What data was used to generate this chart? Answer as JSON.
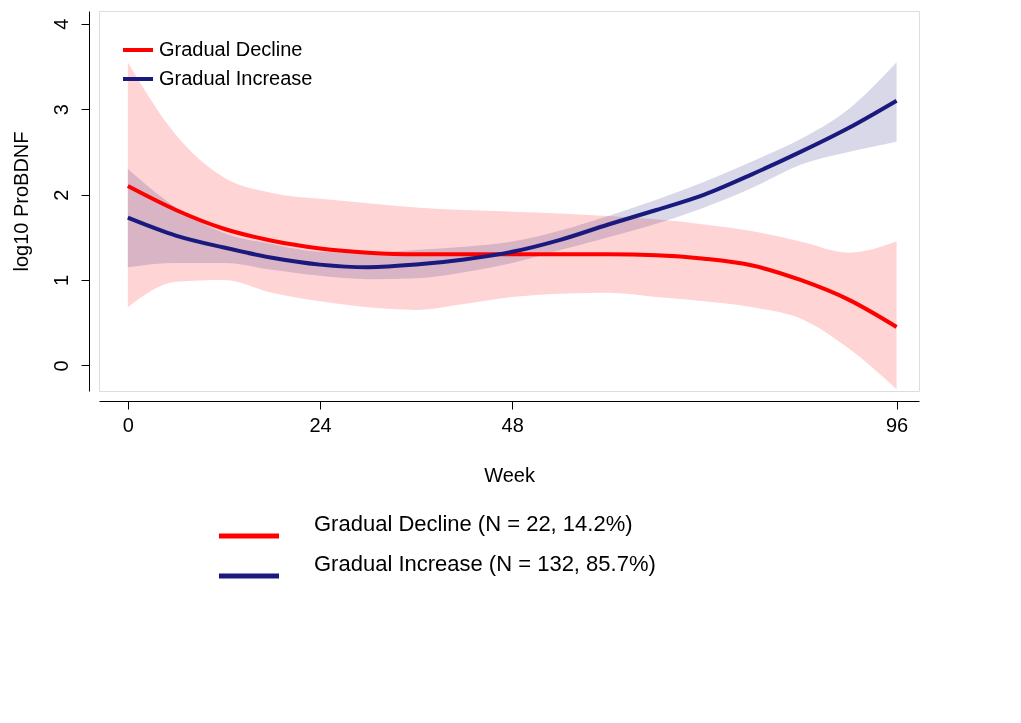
{
  "chart_data": {
    "type": "line",
    "xlabel": "Week",
    "ylabel": "log10 ProBDNF",
    "x": [
      0,
      6,
      12,
      18,
      24,
      30,
      36,
      42,
      48,
      54,
      60,
      66,
      72,
      78,
      84,
      90,
      96
    ],
    "series": [
      {
        "name": "Gradual Decline",
        "color": "#ff0000",
        "values": [
          2.1,
          1.82,
          1.6,
          1.46,
          1.37,
          1.32,
          1.3,
          1.3,
          1.3,
          1.3,
          1.3,
          1.29,
          1.25,
          1.17,
          1.0,
          0.77,
          0.45
        ],
        "upper": [
          3.55,
          2.7,
          2.2,
          2.02,
          1.95,
          1.9,
          1.85,
          1.82,
          1.8,
          1.78,
          1.75,
          1.71,
          1.65,
          1.57,
          1.45,
          1.32,
          1.45
        ],
        "lower": [
          0.68,
          0.98,
          1.0,
          0.85,
          0.75,
          0.68,
          0.65,
          0.72,
          0.8,
          0.84,
          0.85,
          0.8,
          0.75,
          0.68,
          0.55,
          0.2,
          -0.28
        ]
      },
      {
        "name": "Gradual Increase",
        "color": "#1a1a7e",
        "values": [
          1.73,
          1.52,
          1.38,
          1.26,
          1.18,
          1.15,
          1.18,
          1.24,
          1.33,
          1.47,
          1.65,
          1.82,
          2.0,
          2.24,
          2.5,
          2.78,
          3.1
        ],
        "upper": [
          2.3,
          1.85,
          1.55,
          1.42,
          1.33,
          1.32,
          1.35,
          1.39,
          1.45,
          1.58,
          1.75,
          1.94,
          2.15,
          2.39,
          2.65,
          3.0,
          3.55
        ],
        "lower": [
          1.15,
          1.2,
          1.2,
          1.12,
          1.05,
          1.01,
          1.02,
          1.09,
          1.2,
          1.35,
          1.5,
          1.66,
          1.85,
          2.08,
          2.35,
          2.5,
          2.62
        ]
      }
    ],
    "xlim": [
      -3.6,
      98.8
    ],
    "ylim": [
      -0.3,
      4.15
    ],
    "xticks": [
      0,
      24,
      48,
      96
    ],
    "yticks": [
      0,
      1,
      2,
      3,
      4
    ],
    "grid": false,
    "legend": "top left",
    "line_style": "solid",
    "marker": "none",
    "annotations": [
      "Gradual Decline (N = 22, 14.2%)",
      "Gradual Increase (N = 132, 85.7%)"
    ]
  }
}
